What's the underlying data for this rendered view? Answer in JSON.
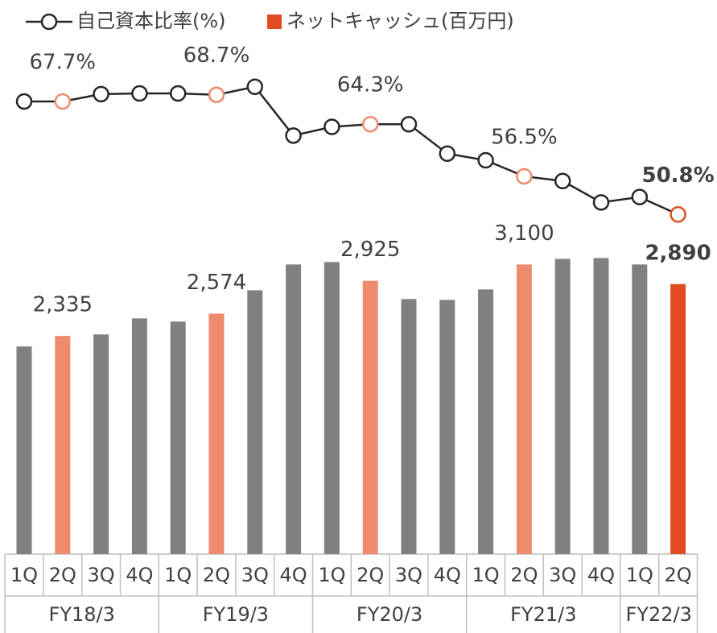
{
  "chart_data": {
    "type": "bar",
    "groups": [
      {
        "label": "FY18/3",
        "categories": [
          "1Q",
          "2Q",
          "3Q",
          "4Q"
        ]
      },
      {
        "label": "FY19/3",
        "categories": [
          "1Q",
          "2Q",
          "3Q",
          "4Q"
        ]
      },
      {
        "label": "FY20/3",
        "categories": [
          "1Q",
          "2Q",
          "3Q",
          "4Q"
        ]
      },
      {
        "label": "FY21/3",
        "categories": [
          "1Q",
          "2Q",
          "3Q",
          "4Q"
        ]
      },
      {
        "label": "FY22/3",
        "categories": [
          "1Q",
          "2Q"
        ]
      }
    ],
    "series": [
      {
        "name": "ネットキャッシュ(百万円)",
        "type": "bar",
        "color": "#e34b22",
        "colors": [
          "#808080",
          "#ee8a6e",
          "#808080",
          "#808080",
          "#808080",
          "#ee8a6e",
          "#808080",
          "#808080",
          "#808080",
          "#ee8a6e",
          "#808080",
          "#808080",
          "#808080",
          "#ee8a6e",
          "#808080",
          "#808080",
          "#808080",
          "#e34b22"
        ],
        "values": [
          2222,
          2335,
          2351,
          2523,
          2489,
          2574,
          2824,
          3100,
          3126,
          2925,
          2730,
          2721,
          2833,
          3100,
          3160,
          3169,
          3100,
          2890
        ],
        "value_labels": [
          null,
          "2,335",
          null,
          null,
          null,
          "2,574",
          null,
          null,
          null,
          "2,925",
          null,
          null,
          null,
          "3,100",
          null,
          null,
          null,
          "2,890"
        ]
      },
      {
        "name": "自己資本比率(%)",
        "type": "line",
        "axis": "y2",
        "color": "#262626",
        "colors": [
          "#262626",
          "#ee8a6e",
          "#262626",
          "#262626",
          "#262626",
          "#ee8a6e",
          "#262626",
          "#262626",
          "#262626",
          "#ee8a6e",
          "#262626",
          "#262626",
          "#262626",
          "#ee8a6e",
          "#262626",
          "#262626",
          "#262626",
          "#e34b22"
        ],
        "values": [
          67.7,
          67.7,
          68.8,
          68.9,
          68.9,
          68.7,
          69.9,
          62.6,
          63.9,
          64.3,
          64.3,
          59.9,
          58.9,
          56.5,
          55.8,
          52.6,
          53.4,
          50.8
        ],
        "value_labels": [
          null,
          "67.7%",
          null,
          null,
          null,
          "68.7%",
          null,
          null,
          null,
          "64.3%",
          null,
          null,
          null,
          "56.5%",
          null,
          null,
          null,
          "50.8%"
        ]
      }
    ],
    "highlight": {
      "index": 17,
      "color": "#e34b22"
    },
    "ylim": [
      0,
      3500
    ],
    "y2lim": [
      45,
      75
    ],
    "legend": "top-left"
  }
}
